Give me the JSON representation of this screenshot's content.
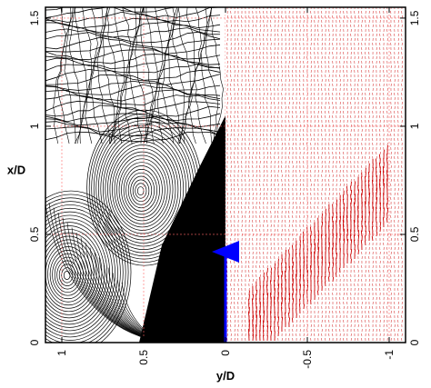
{
  "chart_data": {
    "type": "other",
    "description_type": "streamlines-and-vector-field",
    "xlabel": "y/D",
    "ylabel": "x/D",
    "x_ticks": [
      1,
      0.5,
      0,
      -0.5,
      -1
    ],
    "x_tick_labels": [
      "1",
      "0.5",
      "0",
      "-0.5",
      "-1"
    ],
    "y_ticks": [
      0,
      0.5,
      1,
      1.5
    ],
    "y_tick_labels": [
      "0",
      "0.5",
      "1",
      "1.5"
    ],
    "x_range": [
      1.1,
      -1.1
    ],
    "y_range": [
      0,
      1.55
    ],
    "x_axis_reversed": true,
    "grid": true,
    "panels": [
      {
        "side": "left",
        "y_range": [
          0,
          1.1
        ],
        "content": "streamlines",
        "color": "#000000"
      },
      {
        "side": "right",
        "y_range": [
          -1.1,
          0
        ],
        "content": "velocity-vectors",
        "color": "#cc0000"
      }
    ],
    "vortex_centers": [
      {
        "x": 0.52,
        "y": 0.7
      },
      {
        "x": 0.97,
        "y": 0.31
      }
    ],
    "jet_arrow": {
      "x": 0,
      "y_start": 0,
      "y_end": 0.42,
      "color": "#0000ff"
    }
  },
  "colors": {
    "streamlines": "#000000",
    "vectors": "#cc0000",
    "grid": "#ff6666",
    "jet_arrow": "#0000ff",
    "frame": "#000000"
  }
}
